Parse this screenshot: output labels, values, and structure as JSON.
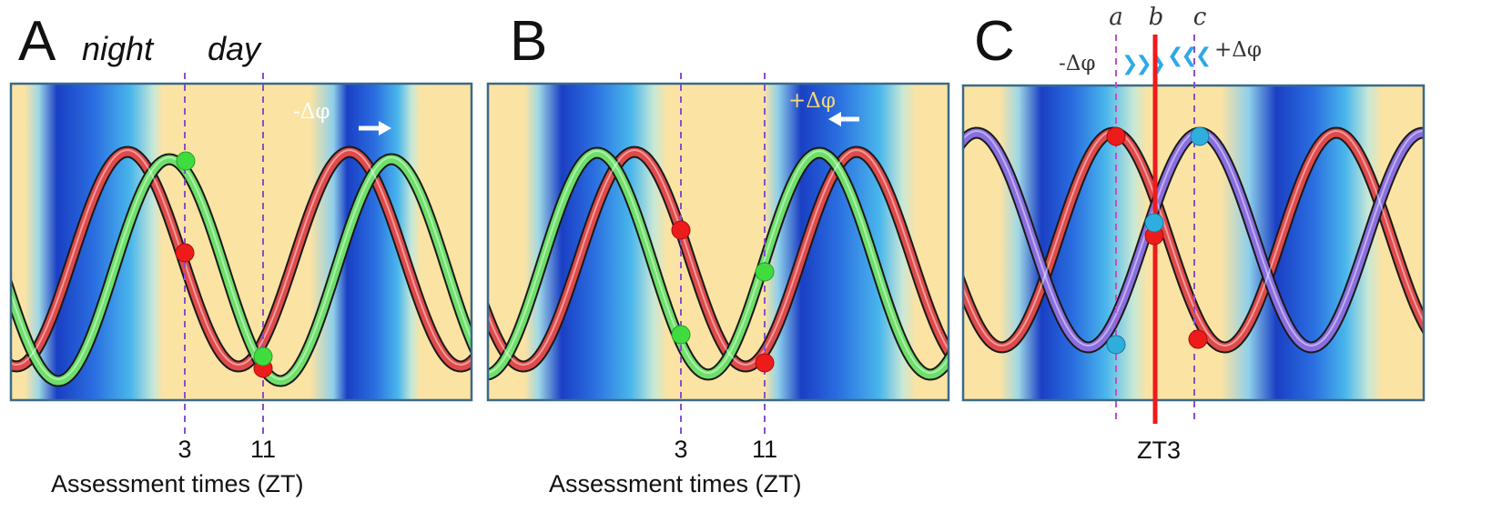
{
  "panels": {
    "A": {
      "letter": "A",
      "night_label": "night",
      "day_label": "day",
      "shift_label": "-Δφ",
      "tick_1": "3",
      "tick_2": "11",
      "axis_title": "Assessment times (ZT)"
    },
    "B": {
      "letter": "B",
      "shift_label": "+Δφ",
      "tick_1": "3",
      "tick_2": "11",
      "axis_title": "Assessment times (ZT)"
    },
    "C": {
      "letter": "C",
      "label_a": "a",
      "label_b": "b",
      "label_c": "c",
      "shift_minus": "-Δφ",
      "shift_plus": "+Δφ",
      "chevrons_right": "❯❯❯",
      "chevrons_left": "❮❮❮",
      "zt_label": "ZT3"
    }
  },
  "colors": {
    "night_blue": "#1a4fd0",
    "day_yellow": "#fbe3a3",
    "red_curve": "#e04a4a",
    "green_curve": "#6ee06a",
    "purple_curve": "#8a6ee0",
    "marker_red": "#ee1b1b",
    "marker_green": "#3fdc3f",
    "marker_blue": "#2eaedc",
    "dashed_line": "#8a4fc8",
    "zt3_line": "#ee1b1b"
  }
}
